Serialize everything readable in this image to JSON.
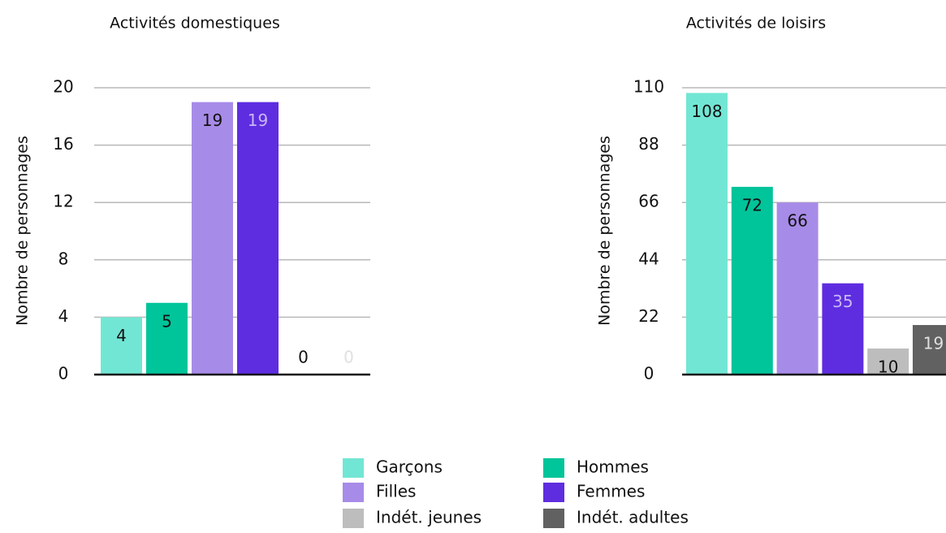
{
  "chart_data": [
    {
      "type": "bar",
      "title": "Activités domestiques",
      "ylabel": "Nombre de personnages",
      "xlabel": "",
      "ylim": [
        0,
        20
      ],
      "yticks": [
        0,
        4,
        8,
        12,
        16,
        20
      ],
      "grid": true,
      "categories": [
        "Garçons",
        "Hommes",
        "Filles",
        "Femmes",
        "Indét. jeunes",
        "Indét. adultes"
      ],
      "values": [
        4,
        5,
        19,
        19,
        0,
        0
      ]
    },
    {
      "type": "bar",
      "title": "Activités de loisirs",
      "ylabel": "Nombre de personnages",
      "xlabel": "",
      "ylim": [
        0,
        110
      ],
      "yticks": [
        0,
        22,
        44,
        66,
        88,
        110
      ],
      "grid": true,
      "categories": [
        "Garçons",
        "Hommes",
        "Filles",
        "Femmes",
        "Indét. jeunes",
        "Indét. adultes"
      ],
      "values": [
        108,
        72,
        66,
        35,
        10,
        19
      ]
    }
  ],
  "colors": [
    "#72e6d4",
    "#00c49a",
    "#a78be8",
    "#5f2de0",
    "#bdbdbd",
    "#616161"
  ],
  "label_colors": [
    "#111111",
    "#111111",
    "#111111",
    "#c8b8f5",
    "#111111",
    "#e0e0e0"
  ],
  "legend": {
    "placement": "bottom",
    "items": [
      "Garçons",
      "Hommes",
      "Filles",
      "Femmes",
      "Indét. jeunes",
      "Indét. adultes"
    ]
  }
}
